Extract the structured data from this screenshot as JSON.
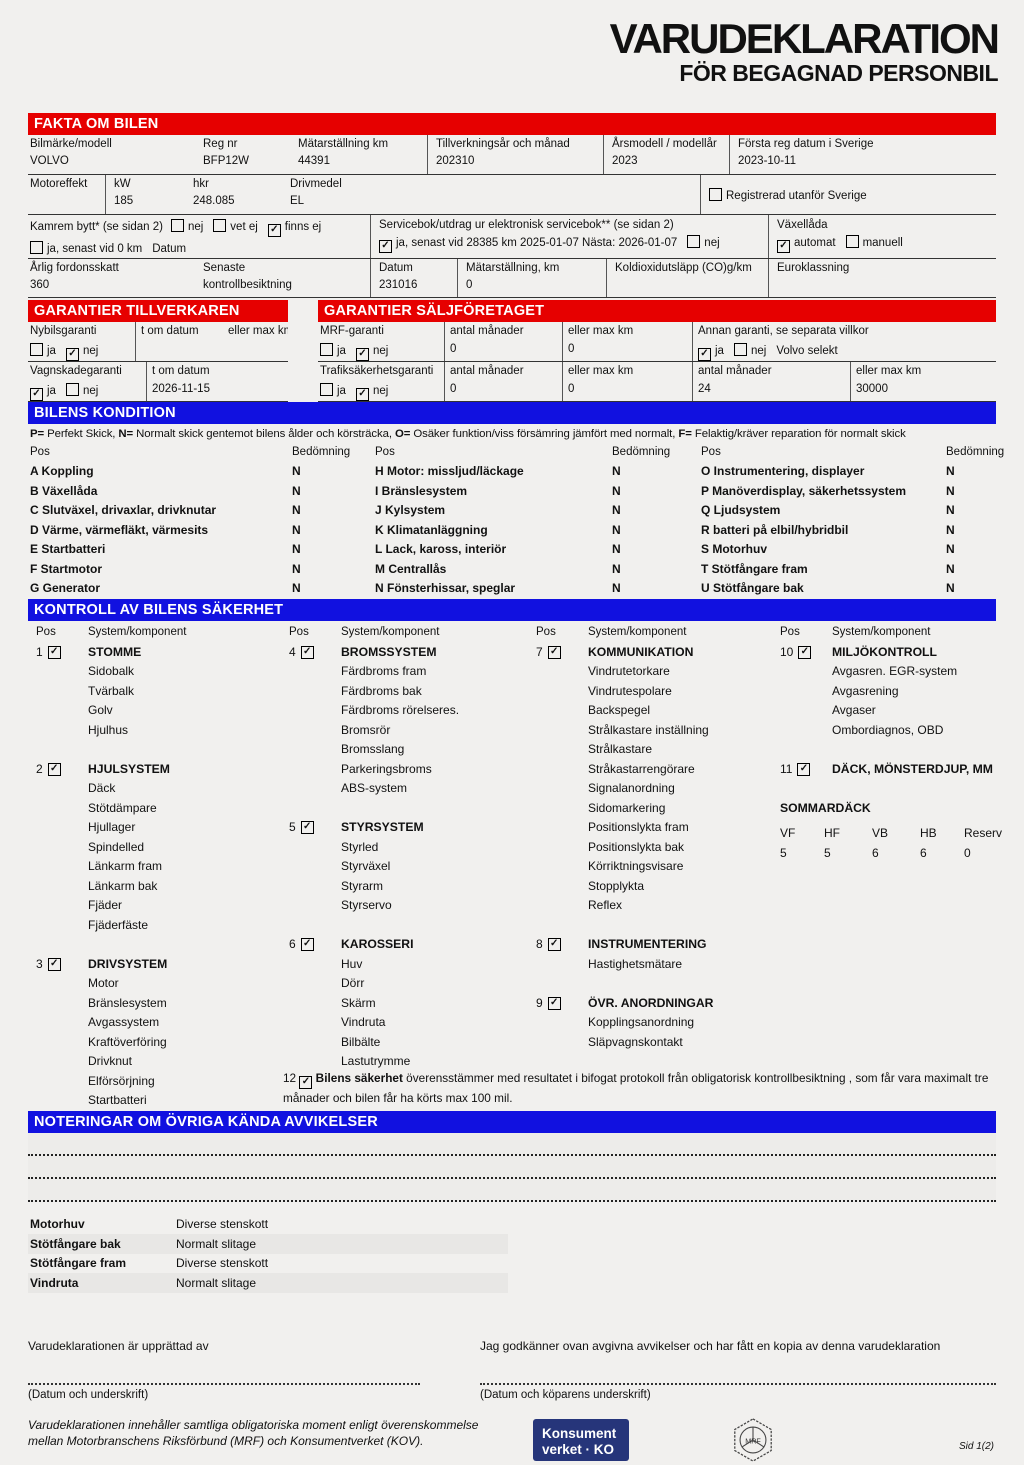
{
  "title": {
    "line1": "VARUDEKLARATION",
    "line2": "FÖR BEGAGNAD PERSONBIL"
  },
  "colors": {
    "red": "#e60000",
    "blue": "#1111e0",
    "navy": "#26357a"
  },
  "fakta": {
    "header": "FAKTA OM BILEN",
    "row1": [
      {
        "label": "Bilmärke/modell",
        "value": "VOLVO"
      },
      {
        "label": "Reg nr",
        "value": "BFP12W"
      },
      {
        "label": "Mätarställning km",
        "value": "44391"
      },
      {
        "label": "Tillverkningsår och månad",
        "value": "202310"
      },
      {
        "label": "Årsmodell / modellår",
        "value": "2023"
      },
      {
        "label": "Första reg datum i Sverige",
        "value": "2023-10-11"
      }
    ],
    "row2": {
      "c1": "Motoreffekt",
      "c2l": "kW",
      "c2v": "185",
      "c3l": "hkr",
      "c3v": "248.085",
      "c4l": "Drivmedel",
      "c4v": "EL",
      "reg": [
        {
          "checked": false,
          "label": "Registrerad utanför Sverige"
        }
      ]
    },
    "kamrem": {
      "label": "Kamrem bytt* (se sidan 2)",
      "opts1": [
        {
          "checked": false,
          "label": "nej"
        },
        {
          "checked": false,
          "label": "vet ej"
        },
        {
          "checked": true,
          "label": "finns ej"
        }
      ],
      "opts2": [
        {
          "checked": false,
          "label": "ja, senast vid 0 km"
        }
      ],
      "datum": "Datum"
    },
    "servicebok": {
      "label": "Servicebok/utdrag ur elektronisk servicebok** (se sidan 2)",
      "opts": [
        {
          "checked": true,
          "label": "ja, senast vid 28385 km  2025-01-07 Nästa: 2026-01-07"
        },
        {
          "checked": false,
          "label": "nej"
        }
      ]
    },
    "vaxellada": {
      "label": "Växellåda",
      "opts": [
        {
          "checked": true,
          "label": "automat"
        },
        {
          "checked": false,
          "label": "manuell"
        }
      ]
    },
    "row4": [
      {
        "label": "Årlig fordonsskatt",
        "value": "360"
      },
      {
        "label": "Senaste",
        "value": "kontrollbesiktning"
      },
      {
        "label": "Datum",
        "value": "231016"
      },
      {
        "label": "Mätarställning, km",
        "value": "0"
      },
      {
        "label": "Koldioxidutsläpp (CO)g/km",
        "value": ""
      },
      {
        "label": "Euroklassning",
        "value": ""
      }
    ]
  },
  "tillverkaren": {
    "header": "GARANTIER TILLVERKAREN",
    "rowA": {
      "l1": "Nybilsgaranti",
      "l2": "t om datum",
      "l3": "eller max km",
      "janej": [
        {
          "checked": false,
          "label": "ja"
        },
        {
          "checked": true,
          "label": "nej"
        }
      ]
    },
    "rowB": {
      "l1": "Vagnskadegaranti",
      "l2": "t om datum",
      "janej": [
        {
          "checked": true,
          "label": "ja"
        },
        {
          "checked": false,
          "label": "nej"
        }
      ],
      "value": "2026-11-15"
    }
  },
  "saljforetaget": {
    "header": "GARANTIER SÄLJFÖRETAGET",
    "rowA": {
      "l1": "MRF-garanti",
      "l2": "antal månader",
      "l3": "eller max km",
      "l4": "Annan garanti, se separata villkor",
      "janej": [
        {
          "checked": false,
          "label": "ja"
        },
        {
          "checked": true,
          "label": "nej"
        }
      ],
      "v2": "0",
      "v3": "0",
      "annan_janej": [
        {
          "checked": true,
          "label": "ja"
        },
        {
          "checked": false,
          "label": "nej"
        }
      ],
      "annan_text": "Volvo selekt"
    },
    "rowB": {
      "l1": "Trafiksäkerhetsgaranti",
      "l2": "antal månader",
      "l3": "eller max km",
      "l4": "antal månader",
      "l5": "eller max km",
      "janej": [
        {
          "checked": false,
          "label": "ja"
        },
        {
          "checked": true,
          "label": "nej"
        }
      ],
      "v2": "0",
      "v3": "0",
      "v4": "24",
      "v5": "30000"
    }
  },
  "kondition": {
    "header": "BILENS KONDITION",
    "legend": [
      {
        "b": "P=",
        "t": " Perfekt Skick, "
      },
      {
        "b": "N=",
        "t": " Normalt skick gentemot bilens ålder och körsträcka, "
      },
      {
        "b": "O=",
        "t": " Osäker funktion/viss försämring jämfört med normalt, "
      },
      {
        "b": "F=",
        "t": " Felaktig/kräver reparation för normalt skick"
      }
    ],
    "pos": "Pos",
    "bedomning": "Bedömning",
    "cols": [
      [
        {
          "code": "A",
          "label": "Koppling",
          "value": "N"
        },
        {
          "code": "B",
          "label": "Växellåda",
          "value": "N"
        },
        {
          "code": "C",
          "label": "Slutväxel, drivaxlar, drivknutar",
          "value": "N"
        },
        {
          "code": "D",
          "label": "Värme, värmefläkt, värmesits",
          "value": "N"
        },
        {
          "code": "E",
          "label": "Startbatteri",
          "value": "N"
        },
        {
          "code": "F",
          "label": "Startmotor",
          "value": "N"
        },
        {
          "code": "G",
          "label": "Generator",
          "value": "N"
        }
      ],
      [
        {
          "code": "H",
          "label": "Motor: missljud/läckage",
          "value": "N"
        },
        {
          "code": "I",
          "label": "Bränslesystem",
          "value": "N"
        },
        {
          "code": "J",
          "label": "Kylsystem",
          "value": "N"
        },
        {
          "code": "K",
          "label": "Klimatanläggning",
          "value": "N"
        },
        {
          "code": "L",
          "label": "Lack, kaross, interiör",
          "value": "N"
        },
        {
          "code": "M",
          "label": "Centrallås",
          "value": "N"
        },
        {
          "code": "N",
          "label": "Fönsterhissar, speglar",
          "value": "N"
        }
      ],
      [
        {
          "code": "O",
          "label": "Instrumentering, displayer",
          "value": "N"
        },
        {
          "code": "P",
          "label": "Manöverdisplay, säkerhetssystem",
          "value": "N"
        },
        {
          "code": "Q",
          "label": "Ljudsystem",
          "value": "N"
        },
        {
          "code": "R",
          "label": "batteri på elbil/hybridbil",
          "value": "N"
        },
        {
          "code": "S",
          "label": "Motorhuv",
          "value": "N"
        },
        {
          "code": "T",
          "label": "Stötfångare fram",
          "value": "N"
        },
        {
          "code": "U",
          "label": "Stötfångare bak",
          "value": "N"
        }
      ]
    ]
  },
  "sakerhet": {
    "header": "KONTROLL AV BILENS SÄKERHET",
    "pos": "Pos",
    "system": "System/komponent",
    "cols": [
      [
        {
          "num": "1",
          "checked": true,
          "title": "STOMME",
          "items": [
            "Sidobalk",
            "Tvärbalk",
            "Golv",
            "Hjulhus"
          ]
        },
        {
          "num": "2",
          "checked": true,
          "title": "HJULSYSTEM",
          "items": [
            "Däck",
            "Stötdämpare",
            "Hjullager",
            "Spindelled",
            "Länkarm fram",
            "Länkarm bak",
            "Fjäder",
            "Fjäderfäste"
          ]
        },
        {
          "num": "3",
          "checked": true,
          "title": "DRIVSYSTEM",
          "items": [
            "Motor",
            "Bränslesystem",
            "Avgassystem",
            "Kraftöverföring",
            "Drivknut",
            "Elförsörjning",
            "Startbatteri"
          ]
        }
      ],
      [
        {
          "num": "4",
          "checked": true,
          "title": "BROMSSYSTEM",
          "items": [
            "Färdbroms fram",
            "Färdbroms bak",
            "Färdbroms rörelseres.",
            "Bromsrör",
            "Bromsslang",
            "Parkeringsbroms",
            "ABS-system"
          ]
        },
        {
          "num": "5",
          "checked": true,
          "title": "STYRSYSTEM",
          "items": [
            "Styrled",
            "Styrväxel",
            "Styrarm",
            "Styrservo"
          ]
        },
        {
          "num": "6",
          "checked": true,
          "title": "KAROSSERI",
          "items": [
            "Huv",
            "Dörr",
            "Skärm",
            "Vindruta",
            "Bilbälte",
            "Lastutrymme"
          ]
        }
      ],
      [
        {
          "num": "7",
          "checked": true,
          "title": "KOMMUNIKATION",
          "items": [
            "Vindrutetorkare",
            "Vindrutespolare",
            "Backspegel",
            "Strålkastare inställning",
            "Strålkastare",
            "Stråkastarrengörare",
            "Signalanordning",
            "Sidomarkering",
            "Positionslykta fram",
            "Positionslykta bak",
            "Körriktningsvisare",
            "Stopplykta",
            "Reflex"
          ]
        },
        {
          "num": "8",
          "checked": true,
          "title": "INSTRUMENTERING",
          "items": [
            "Hastighetsmätare"
          ]
        },
        {
          "num": "9",
          "checked": true,
          "title": "ÖVR. ANORDNINGAR",
          "items": [
            "Kopplingsanordning",
            "Släpvagnskontakt"
          ]
        }
      ],
      [
        {
          "num": "10",
          "checked": true,
          "title": "MILJÖKONTROLL",
          "items": [
            "Avgasren. EGR-system",
            "Avgasrening",
            "Avgaser",
            "Ombordiagnos, OBD"
          ]
        },
        {
          "num": "11",
          "checked": true,
          "title": "DÄCK, MÖNSTERDJUP, MM",
          "items": []
        }
      ]
    ],
    "sommardack": "SOMMARDÄCK",
    "tire": {
      "headers": [
        "VF",
        "HF",
        "VB",
        "HB",
        "Reserv"
      ],
      "values": [
        "5",
        "5",
        "6",
        "6",
        "0"
      ]
    },
    "item12": {
      "num": "12",
      "checked": true,
      "bold": "Bilens säkerhet",
      "text": " överensstämmer med resultatet i bifogat protokoll från obligatorisk kontrollbesiktning , som får vara maximalt tre månader och bilen får ha körts max 100 mil."
    }
  },
  "noteringar": {
    "header": "NOTERINGAR OM ÖVRIGA KÄNDA AVVIKELSER",
    "notes": [
      {
        "part": "Motorhuv",
        "remark": "Diverse stenskott"
      },
      {
        "part": "Stötfångare bak",
        "remark": "Normalt slitage"
      },
      {
        "part": "Stötfångare fram",
        "remark": "Diverse stenskott"
      },
      {
        "part": "Vindruta",
        "remark": "Normalt slitage"
      }
    ]
  },
  "signatures": {
    "left_label": "Varudeklarationen är upprättad av",
    "left_caption": "(Datum och underskrift)",
    "right_label": "Jag godkänner ovan avgivna avvikelser och har fått en kopia av denna varudeklaration",
    "right_caption": "(Datum och köparens underskrift)"
  },
  "footer": {
    "line1": "Varudeklarationen innehåller samtliga obligatoriska moment enligt överenskommelse",
    "line2": "mellan Motorbranschens Riksförbund (MRF) och Konsumentverket (KOV).",
    "kov_logo_line1": "Konsument",
    "kov_logo_line2": "verket · KO",
    "mrf_logo": "MRF",
    "page": "Sid 1(2)"
  }
}
